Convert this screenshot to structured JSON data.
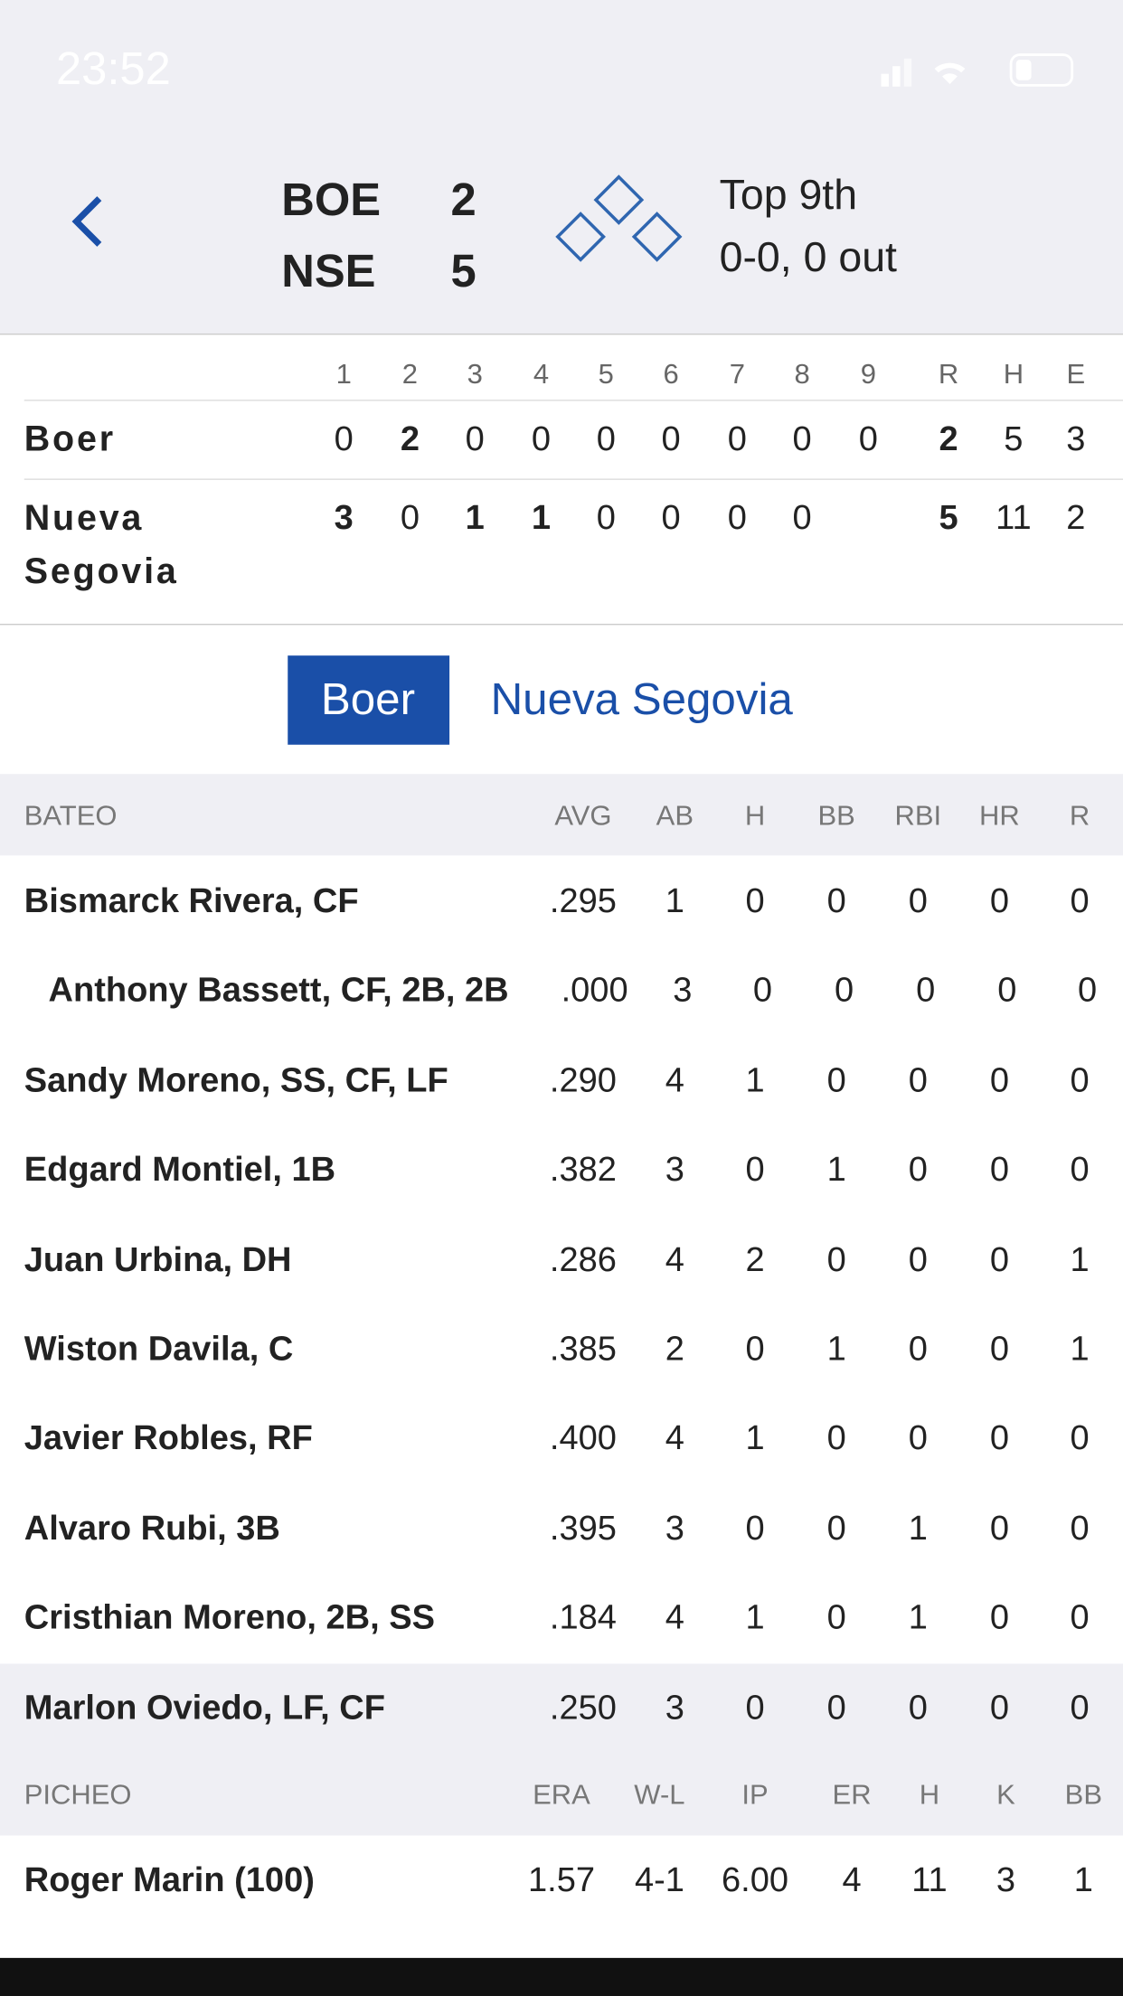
{
  "status_bar": {
    "time": "23:52"
  },
  "header": {
    "away_abbr": "BOE",
    "away_score": "2",
    "home_abbr": "NSE",
    "home_score": "5",
    "inning": "Top 9th",
    "count": "0-0, 0 out"
  },
  "linescore": {
    "columns": [
      "1",
      "2",
      "3",
      "4",
      "5",
      "6",
      "7",
      "8",
      "9",
      "R",
      "H",
      "E"
    ],
    "rows": [
      {
        "team": "Boer",
        "cells": [
          "0",
          "2",
          "0",
          "0",
          "0",
          "0",
          "0",
          "0",
          "0",
          "2",
          "5",
          "3"
        ]
      },
      {
        "team": "Nueva Segovia",
        "cells": [
          "3",
          "0",
          "1",
          "1",
          "0",
          "0",
          "0",
          "0",
          "",
          "5",
          "11",
          "2"
        ]
      }
    ]
  },
  "tabs": [
    "Boer",
    "Nueva Segovia"
  ],
  "batting": {
    "columns": [
      "BATEO",
      "AVG",
      "AB",
      "H",
      "BB",
      "RBI",
      "HR",
      "R"
    ],
    "rows": [
      [
        "Bismarck Rivera, CF",
        ".295",
        "1",
        "0",
        "0",
        "0",
        "0",
        "0"
      ],
      [
        "Anthony Bassett, CF, 2B, 2B",
        ".000",
        "3",
        "0",
        "0",
        "0",
        "0",
        "0"
      ],
      [
        "Sandy Moreno, SS, CF, LF",
        ".290",
        "4",
        "1",
        "0",
        "0",
        "0",
        "0"
      ],
      [
        "Edgard Montiel, 1B",
        ".382",
        "3",
        "0",
        "1",
        "0",
        "0",
        "0"
      ],
      [
        "Juan Urbina, DH",
        ".286",
        "4",
        "2",
        "0",
        "0",
        "0",
        "1"
      ],
      [
        "Wiston Davila, C",
        ".385",
        "2",
        "0",
        "1",
        "0",
        "0",
        "1"
      ],
      [
        "Javier Robles, RF",
        ".400",
        "4",
        "1",
        "0",
        "0",
        "0",
        "0"
      ],
      [
        "Alvaro Rubi, 3B",
        ".395",
        "3",
        "0",
        "0",
        "1",
        "0",
        "0"
      ],
      [
        "Cristhian Moreno, 2B, SS",
        ".184",
        "4",
        "1",
        "0",
        "1",
        "0",
        "0"
      ],
      [
        "Marlon Oviedo, LF, CF",
        ".250",
        "3",
        "0",
        "0",
        "0",
        "0",
        "0"
      ]
    ]
  },
  "pitching": {
    "columns": [
      "PICHEO",
      "ERA",
      "W-L",
      "IP",
      "ER",
      "H",
      "K",
      "BB"
    ],
    "rows": [
      [
        "Roger Marin (100)",
        "1.57",
        "4-1",
        "6.00",
        "4",
        "11",
        "3",
        "1"
      ]
    ]
  }
}
